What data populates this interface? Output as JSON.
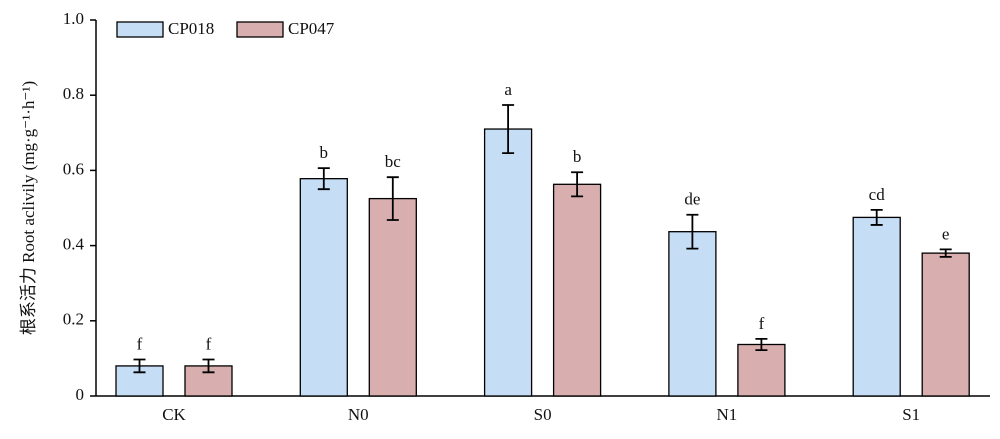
{
  "chart_data": {
    "type": "bar",
    "ylabel": "根系活力 Root aclivily (mg·g⁻¹·h⁻¹)",
    "categories": [
      "CK",
      "N0",
      "S0",
      "N1",
      "S1"
    ],
    "series": [
      {
        "name": "CP018",
        "color": "#c6ddf6",
        "values": [
          0.08,
          0.578,
          0.71,
          0.437,
          0.475
        ],
        "errors": [
          0.017,
          0.028,
          0.064,
          0.045,
          0.02
        ],
        "labels": [
          "f",
          "b",
          "a",
          "de",
          "cd"
        ]
      },
      {
        "name": "CP047",
        "color": "#d8afae",
        "values": [
          0.08,
          0.525,
          0.563,
          0.137,
          0.38
        ],
        "errors": [
          0.017,
          0.057,
          0.032,
          0.015,
          0.01
        ],
        "labels": [
          "f",
          "bc",
          "b",
          "f",
          "e"
        ]
      }
    ],
    "ylim": [
      0,
      1
    ],
    "yticks": [
      0,
      0.2,
      0.4,
      0.6,
      0.8,
      {
        "value": 1,
        "label": "1.0"
      }
    ],
    "legend": "upper-left"
  }
}
